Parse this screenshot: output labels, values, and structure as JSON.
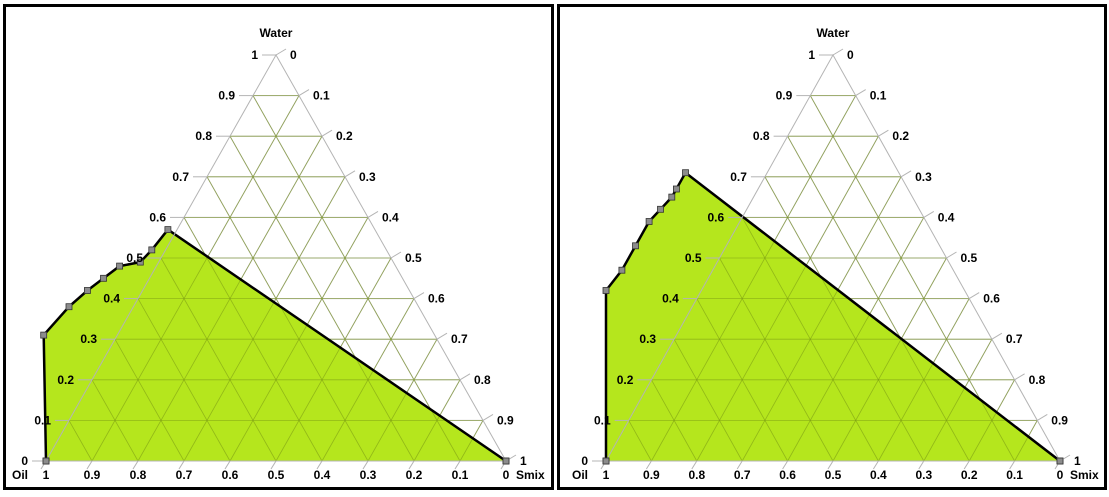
{
  "colors": {
    "fill": "#b5e61d",
    "outline": "#000000",
    "grid": "#b4b4b4",
    "marker_fill": "#8c8c8c"
  },
  "chart_data": [
    {
      "type": "ternary",
      "axes": {
        "top": "Water",
        "left": "Oil",
        "right": "Smix"
      },
      "ticks": [
        "0",
        "0.1",
        "0.2",
        "0.3",
        "0.4",
        "0.5",
        "0.6",
        "0.7",
        "0.8",
        "0.9",
        "1"
      ],
      "grid": true,
      "region": "filled",
      "boundary_points": [
        {
          "oil": 1.0,
          "water": 0.0,
          "smix": 0.0
        },
        {
          "oil": 0.85,
          "water": 0.31,
          "smix": -0.16
        },
        {
          "oil": 0.76,
          "water": 0.38,
          "smix": -0.14
        },
        {
          "oil": 0.7,
          "water": 0.42,
          "smix": -0.12
        },
        {
          "oil": 0.65,
          "water": 0.45,
          "smix": -0.1
        },
        {
          "oil": 0.6,
          "water": 0.48,
          "smix": -0.08
        },
        {
          "oil": 0.55,
          "water": 0.49,
          "smix": -0.04
        },
        {
          "oil": 0.51,
          "water": 0.52,
          "smix": -0.03
        },
        {
          "oil": 0.45,
          "water": 0.57,
          "smix": -0.02
        },
        {
          "oil": 0.0,
          "water": 0.0,
          "smix": 1.0
        }
      ]
    },
    {
      "type": "ternary",
      "axes": {
        "top": "Water",
        "left": "Oil",
        "right": "Smix"
      },
      "ticks": [
        "0",
        "0.1",
        "0.2",
        "0.3",
        "0.4",
        "0.5",
        "0.6",
        "0.7",
        "0.8",
        "0.9",
        "1"
      ],
      "grid": true,
      "region": "filled",
      "boundary_points": [
        {
          "oil": 1.0,
          "water": 0.0,
          "smix": 0.0
        },
        {
          "oil": 0.79,
          "water": 0.42,
          "smix": -0.21
        },
        {
          "oil": 0.73,
          "water": 0.47,
          "smix": -0.2
        },
        {
          "oil": 0.67,
          "water": 0.53,
          "smix": -0.2
        },
        {
          "oil": 0.61,
          "water": 0.59,
          "smix": -0.2
        },
        {
          "oil": 0.57,
          "water": 0.62,
          "smix": -0.19
        },
        {
          "oil": 0.53,
          "water": 0.65,
          "smix": -0.18
        },
        {
          "oil": 0.51,
          "water": 0.67,
          "smix": -0.18
        },
        {
          "oil": 0.47,
          "water": 0.71,
          "smix": -0.18
        },
        {
          "oil": 0.0,
          "water": 0.0,
          "smix": 1.0
        }
      ]
    }
  ]
}
